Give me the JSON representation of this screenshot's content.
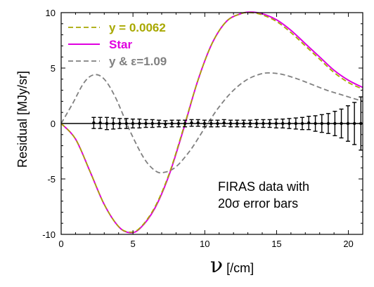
{
  "chart_data": {
    "type": "line",
    "xlabel_symbol": "ν",
    "xlabel_unit": " [/cm]",
    "ylabel": "Residual [MJy/sr]",
    "xlim": [
      0,
      21
    ],
    "ylim": [
      -10,
      10
    ],
    "x_ticks": [
      0,
      5,
      10,
      15,
      20
    ],
    "y_ticks": [
      -10,
      -5,
      0,
      5,
      10
    ],
    "grid": false,
    "legend_position": "top-left",
    "series": [
      {
        "name": "y = 0.0062",
        "color": "#a8a800",
        "style": "dashed",
        "x": [
          0,
          1,
          2,
          3,
          4,
          4.8,
          5.5,
          6.5,
          7.5,
          8.5,
          9.5,
          10.5,
          11.5,
          12.5,
          13.2,
          14,
          15,
          16,
          17,
          18,
          19,
          20,
          21
        ],
        "y": [
          0,
          -1.4,
          -4.3,
          -7.3,
          -9.3,
          -9.8,
          -9.4,
          -7.6,
          -4.6,
          -0.5,
          3.8,
          7.2,
          9.2,
          9.9,
          10.0,
          9.8,
          9.2,
          8.2,
          7.0,
          5.8,
          4.6,
          3.7,
          3.1
        ]
      },
      {
        "name": "Star",
        "color": "#e000e0",
        "style": "solid",
        "x": [
          0,
          1,
          2,
          3,
          4,
          4.8,
          5.5,
          6.5,
          7.5,
          8.5,
          9.5,
          10.5,
          11.5,
          12.5,
          13.2,
          14,
          15,
          16,
          17,
          18,
          19,
          20,
          21
        ],
        "y": [
          0,
          -1.4,
          -4.3,
          -7.3,
          -9.3,
          -9.85,
          -9.45,
          -7.7,
          -4.7,
          -0.6,
          3.8,
          7.2,
          9.2,
          9.9,
          10.05,
          9.9,
          9.35,
          8.4,
          7.2,
          6.0,
          4.8,
          3.9,
          3.25
        ]
      },
      {
        "name": "y & ε=1.09",
        "color": "#808080",
        "style": "dashed",
        "x": [
          0,
          0.8,
          1.6,
          2.3,
          3.0,
          3.8,
          4.8,
          5.8,
          6.6,
          7.2,
          8.0,
          9.0,
          10.0,
          11.0,
          12.0,
          13.0,
          14.0,
          14.7,
          15.5,
          16.5,
          17.5,
          18.5,
          19.5,
          20.5,
          21
        ],
        "y": [
          0,
          1.8,
          3.7,
          4.4,
          4.0,
          2.3,
          -0.7,
          -3.2,
          -4.3,
          -4.4,
          -3.9,
          -2.4,
          -0.4,
          1.5,
          3.0,
          4.0,
          4.5,
          4.55,
          4.4,
          4.0,
          3.5,
          3.0,
          2.6,
          2.2,
          2.0
        ]
      },
      {
        "name": "FIRAS data",
        "color": "#000000",
        "style": "errorbar",
        "x": [
          2.27,
          2.72,
          3.18,
          3.63,
          4.08,
          4.54,
          4.99,
          5.45,
          5.9,
          6.35,
          6.81,
          7.26,
          7.71,
          8.17,
          8.62,
          9.08,
          9.53,
          9.98,
          10.44,
          10.89,
          11.34,
          11.8,
          12.25,
          12.71,
          13.16,
          13.61,
          14.07,
          14.52,
          14.97,
          15.43,
          15.88,
          16.34,
          16.79,
          17.24,
          17.7,
          18.15,
          18.6,
          19.06,
          19.51,
          19.97,
          20.42,
          20.87
        ],
        "y": [
          0.05,
          0.05,
          0,
          0,
          0,
          0,
          0,
          0,
          0,
          0,
          0,
          -0.05,
          0,
          0,
          0,
          0.05,
          0.05,
          0,
          0,
          0,
          0.05,
          0,
          0,
          0,
          0,
          0,
          0,
          0,
          0,
          0,
          0,
          0,
          0,
          0.05,
          0,
          0,
          0,
          0,
          0,
          0,
          0,
          0
        ],
        "err": [
          0.5,
          0.5,
          0.55,
          0.5,
          0.45,
          0.45,
          0.4,
          0.4,
          0.35,
          0.35,
          0.3,
          0.3,
          0.3,
          0.3,
          0.3,
          0.3,
          0.3,
          0.3,
          0.3,
          0.3,
          0.3,
          0.3,
          0.3,
          0.3,
          0.3,
          0.35,
          0.35,
          0.35,
          0.4,
          0.4,
          0.45,
          0.5,
          0.55,
          0.6,
          0.7,
          0.8,
          0.9,
          1.1,
          1.3,
          1.6,
          1.9,
          2.4
        ]
      }
    ],
    "legend": [
      {
        "label": "y = 0.0062",
        "color": "#a8a800",
        "style": "dashed"
      },
      {
        "label": "Star",
        "color": "#e000e0",
        "style": "solid"
      },
      {
        "label": "y & ε=1.09",
        "color": "#808080",
        "style": "dashed"
      }
    ],
    "annotation_lines": [
      "FIRAS data with",
      "20σ  error bars"
    ]
  }
}
